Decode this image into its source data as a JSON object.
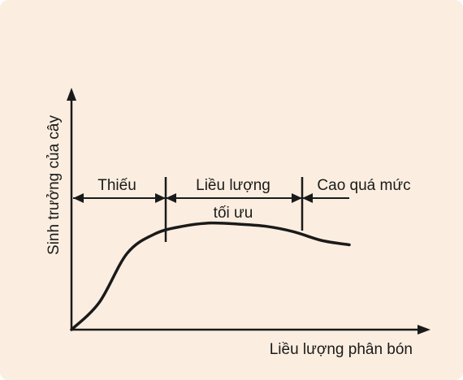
{
  "chart_data": {
    "type": "line",
    "ylabel": "Sinh trưởng của cây",
    "xlabel": "Liều lượng phân bón",
    "x": [
      0,
      0.1,
      0.2,
      0.3,
      0.4,
      0.5,
      0.6,
      0.7,
      0.8,
      0.9,
      1.0
    ],
    "y": [
      0,
      0.25,
      0.7,
      0.88,
      0.95,
      0.98,
      0.97,
      0.95,
      0.9,
      0.82,
      0.78
    ],
    "zones": [
      {
        "label": "Thiếu"
      },
      {
        "label": "Liều lượng tối ưu",
        "line1": "Liều lượng",
        "line2": "tối ưu"
      },
      {
        "label": "Cao quá mức"
      }
    ],
    "grid": false,
    "legend": "none"
  },
  "colors": {
    "background": "#fbeee0",
    "ink": "#1a1a1a"
  }
}
